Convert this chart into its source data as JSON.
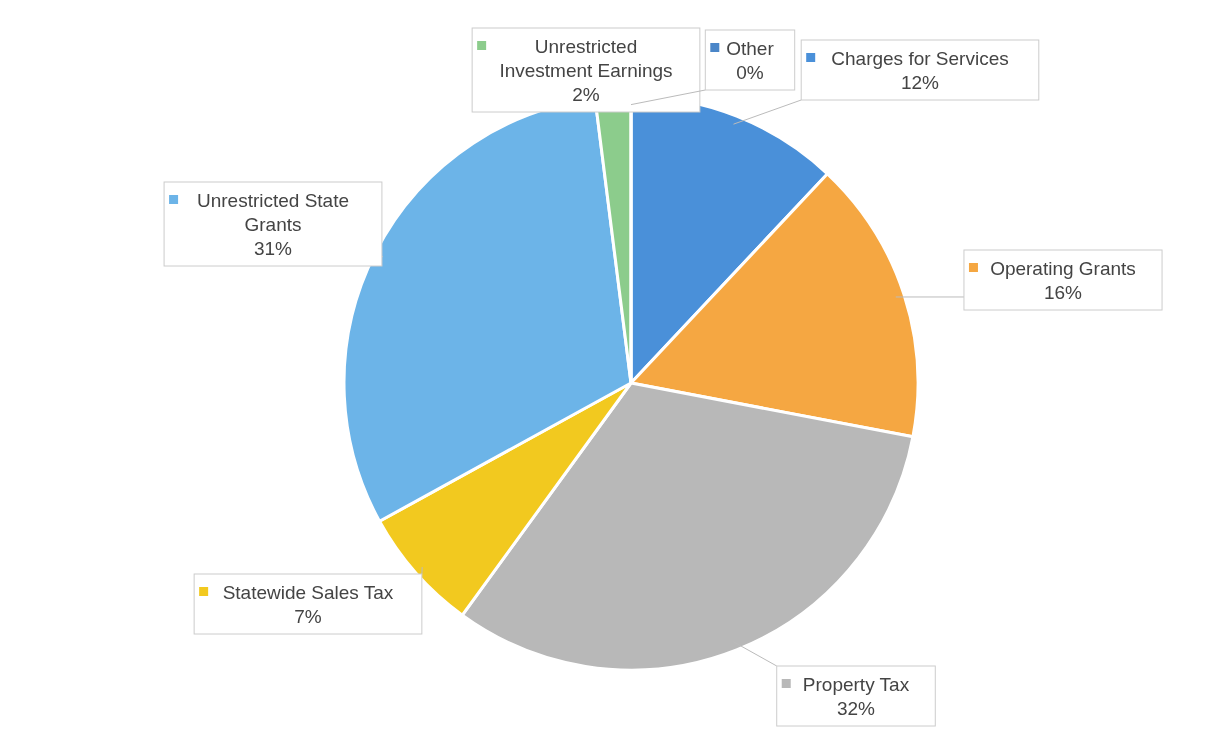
{
  "chart_data": {
    "type": "pie",
    "categories": [
      "Charges for Services",
      "Operating Grants",
      "Property Tax",
      "Statewide Sales Tax",
      "Unrestricted State Grants",
      "Unrestricted Investment Earnings",
      "Other"
    ],
    "values": [
      12,
      16,
      32,
      7,
      31,
      2,
      0
    ],
    "colors": [
      "#4a90d9",
      "#f5a742",
      "#b8b8b8",
      "#f2c91f",
      "#6cb4e8",
      "#8ccc8c",
      "#4a86c8"
    ],
    "legend": "right",
    "value_labels": [
      "12%",
      "16%",
      "32%",
      "7%",
      "31%",
      "2%",
      "0%"
    ]
  }
}
